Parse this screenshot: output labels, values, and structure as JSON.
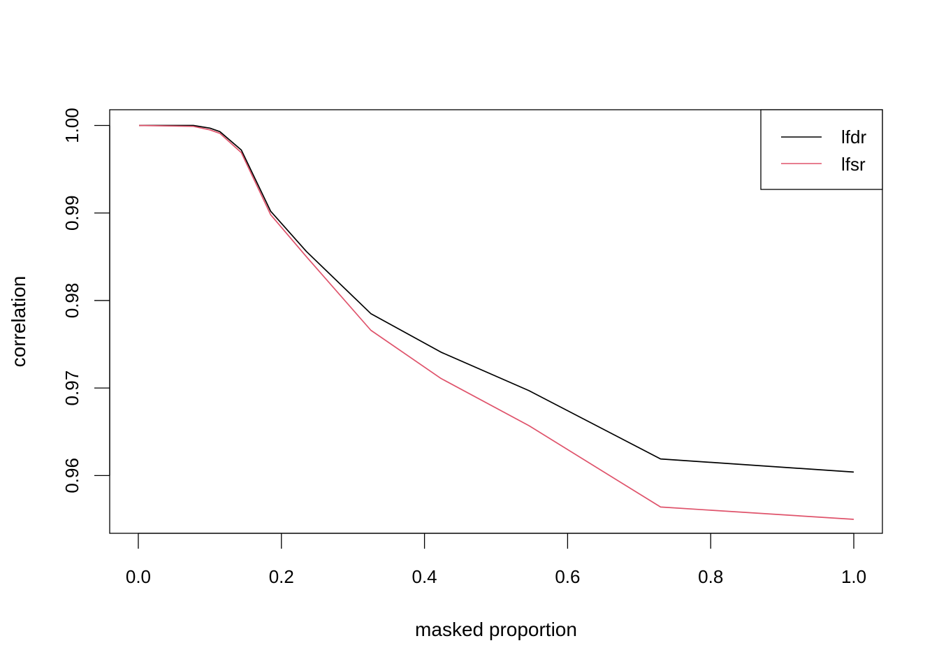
{
  "chart_data": {
    "type": "line",
    "title": "",
    "xlabel": "masked proportion",
    "ylabel": "correlation",
    "xlim": [
      0,
      1
    ],
    "ylim": [
      0.9534,
      1.0018
    ],
    "xticks": [
      0,
      0.2,
      0.4,
      0.6,
      0.8,
      1.0
    ],
    "xtick_labels": [
      "0.0",
      "0.2",
      "0.4",
      "0.6",
      "0.8",
      "1.0"
    ],
    "yticks": [
      0.96,
      0.97,
      0.98,
      0.99,
      1.0
    ],
    "ytick_labels": [
      "0.96",
      "0.97",
      "0.98",
      "0.99",
      "1.00"
    ],
    "grid": false,
    "legend": "top-right",
    "series": [
      {
        "name": "lfdr",
        "color": "#000000",
        "x": [
          0.001,
          0.077,
          0.1,
          0.114,
          0.144,
          0.185,
          0.235,
          0.325,
          0.423,
          0.546,
          0.73,
          1.0
        ],
        "y": [
          1.0,
          1.0,
          0.9997,
          0.9993,
          0.9972,
          0.9902,
          0.9856,
          0.9785,
          0.9741,
          0.9697,
          0.9619,
          0.9604
        ]
      },
      {
        "name": "lfsr",
        "color": "#DF536B",
        "x": [
          0.001,
          0.077,
          0.1,
          0.114,
          0.144,
          0.185,
          0.235,
          0.325,
          0.423,
          0.546,
          0.73,
          1.0
        ],
        "y": [
          1.0,
          0.9999,
          0.9995,
          0.9991,
          0.9969,
          0.9898,
          0.985,
          0.9766,
          0.9711,
          0.9657,
          0.9564,
          0.955
        ]
      }
    ]
  }
}
